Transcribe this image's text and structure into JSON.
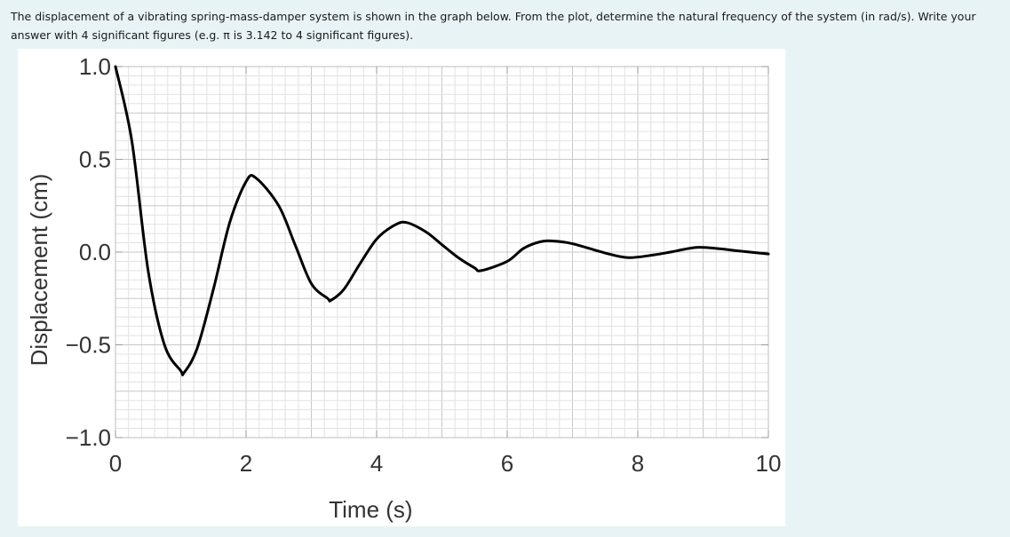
{
  "question": {
    "text": "The displacement of a vibrating spring-mass-damper system is shown in the graph below.  From the plot, determine the natural frequency of the system (in rad/s).  Write your answer with 4 significant figures (e.g. π is 3.142 to 4 significant figures)."
  },
  "colors": {
    "page_background": "#e8f3f6",
    "plot_background": "#ffffff",
    "grid_minor": "#e2e2e2",
    "grid_major": "#c8c8c8",
    "curve": "#000000"
  },
  "chart_data": {
    "type": "line",
    "title": "",
    "xlabel": "Time (s)",
    "ylabel": "Displacement (cm)",
    "xlim": [
      0,
      10
    ],
    "ylim": [
      -1.0,
      1.0
    ],
    "x_ticks": [
      0,
      2,
      4,
      6,
      8,
      10
    ],
    "x_tick_labels": [
      "0",
      "2",
      "4",
      "6",
      "8",
      "10"
    ],
    "y_ticks": [
      1.0,
      0.5,
      0.0,
      -0.5,
      -1.0
    ],
    "y_tick_labels": [
      "1.0",
      "0.5",
      "0.0",
      "−0.5",
      "−1.0"
    ],
    "grid": true,
    "minor_grid_step_x": 0.2,
    "minor_grid_step_y": 0.05,
    "legend": "none",
    "series": [
      {
        "color": "#000000",
        "x": [
          0,
          0.25,
          0.5,
          0.75,
          1.0,
          1.05,
          1.25,
          1.5,
          1.75,
          2.0,
          2.15,
          2.5,
          2.75,
          3.0,
          3.25,
          3.3,
          3.5,
          3.75,
          4.0,
          4.25,
          4.45,
          4.75,
          5.0,
          5.25,
          5.5,
          5.6,
          6.0,
          6.25,
          6.5,
          6.7,
          7.0,
          7.5,
          7.85,
          8.25,
          8.5,
          8.9,
          9.25,
          9.5,
          10.0
        ],
        "y": [
          1.0,
          0.6,
          -0.1,
          -0.5,
          -0.64,
          -0.65,
          -0.52,
          -0.2,
          0.16,
          0.38,
          0.4,
          0.25,
          0.04,
          -0.17,
          -0.25,
          -0.26,
          -0.2,
          -0.06,
          0.07,
          0.14,
          0.16,
          0.11,
          0.04,
          -0.03,
          -0.085,
          -0.1,
          -0.05,
          0.02,
          0.055,
          0.06,
          0.045,
          -0.005,
          -0.03,
          -0.015,
          0.0,
          0.025,
          0.018,
          0.008,
          -0.01
        ]
      }
    ]
  }
}
